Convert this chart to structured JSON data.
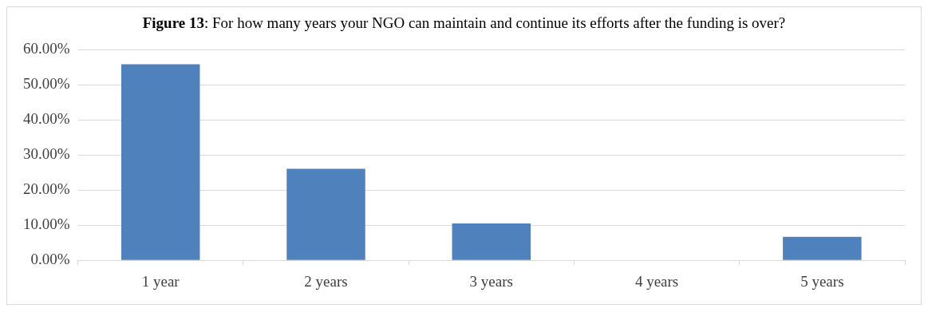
{
  "chart_data": {
    "type": "bar",
    "title": "Figure 13: For how many years your NGO can maintain and continue its efforts after the funding is over?",
    "categories": [
      "1 year",
      "2 years",
      "3 years",
      "4 years",
      "5 years"
    ],
    "values": [
      55.9,
      26.1,
      10.5,
      0,
      6.7
    ],
    "color": "#4f81bd",
    "ylim": [
      0,
      60
    ],
    "yticks": [
      {
        "value": 0,
        "label": "0.00%"
      },
      {
        "value": 10,
        "label": "10.00%"
      },
      {
        "value": 20,
        "label": "20.00%"
      },
      {
        "value": 30,
        "label": "30.00%"
      },
      {
        "value": 40,
        "label": "40.00%"
      },
      {
        "value": 50,
        "label": "50.00%"
      },
      {
        "value": 60,
        "label": "60.00%"
      }
    ],
    "grid": "y",
    "legend": false
  }
}
